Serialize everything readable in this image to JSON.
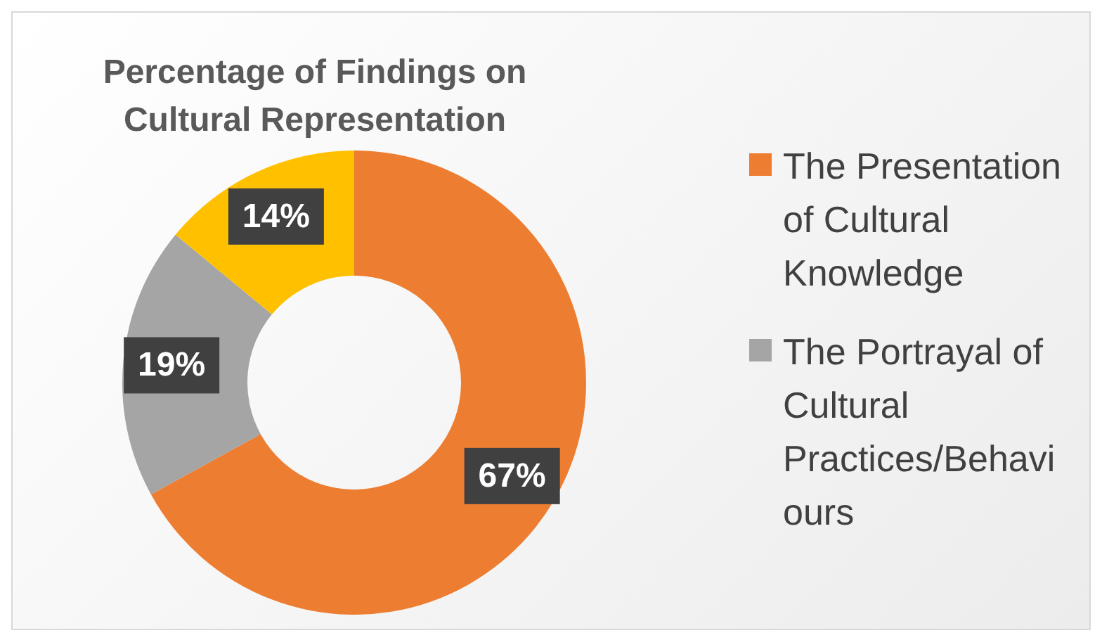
{
  "chart_data": {
    "type": "donut",
    "title": "Percentage of Findings on Cultural Representation",
    "categories": [
      "The Presentation of Cultural Knowledge",
      "The Portrayal of Cultural Practices/Behaviours",
      null
    ],
    "values": [
      67,
      19,
      14
    ],
    "colors": [
      "#ed7d31",
      "#a5a5a5",
      "#ffc000"
    ],
    "value_labels": [
      "67%",
      "19%",
      "14%"
    ],
    "legend": "right"
  }
}
